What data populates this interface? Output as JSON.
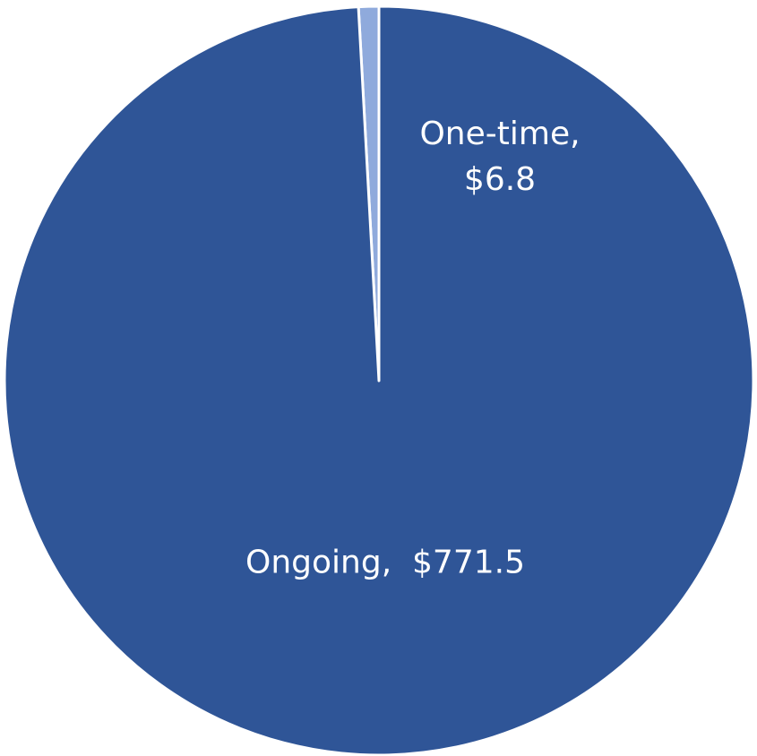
{
  "chart_data": {
    "type": "pie",
    "title": "",
    "slices": [
      {
        "name": "Ongoing",
        "value": 771.5,
        "color": "#2f5597",
        "label_text": "Ongoing,  $771.5"
      },
      {
        "name": "One-time",
        "value": 6.8,
        "color": "#8faadc",
        "label_text": "One-time,\n$6.8"
      }
    ],
    "legend": "none"
  }
}
